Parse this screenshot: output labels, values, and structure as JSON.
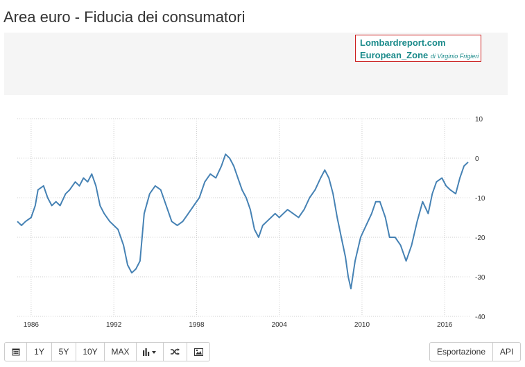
{
  "page": {
    "title": "Area euro - Fiducia dei consumatori"
  },
  "watermark": {
    "line1": "Lombardreport.com",
    "line2": "European_Zone",
    "byline": "di Virginio Frigieri"
  },
  "toolbar": {
    "buttons": [
      {
        "icon": "calendar-icon"
      },
      {
        "label": "1Y"
      },
      {
        "label": "5Y"
      },
      {
        "label": "10Y"
      },
      {
        "label": "MAX"
      },
      {
        "icon": "bar-chart-dropdown-icon"
      },
      {
        "icon": "shuffle-icon"
      },
      {
        "icon": "image-icon"
      }
    ],
    "right": [
      {
        "label": "Esportazione"
      },
      {
        "label": "API"
      }
    ]
  },
  "chart_data": {
    "type": "line",
    "xlabel": "",
    "ylabel": "",
    "xlim": [
      1985.0,
      2017.8
    ],
    "ylim": [
      -40,
      10
    ],
    "x_ticks": [
      "1986",
      "1992",
      "1998",
      "2004",
      "2010",
      "2016"
    ],
    "y_ticks": [
      "10",
      "0",
      "-10",
      "-20",
      "-30",
      "-40"
    ],
    "y_axis_position": "right",
    "grid": "dotted vertical at year ticks, dotted horizontal at value ticks",
    "line_color": "#4682b4",
    "series": [
      {
        "x": [
          1985.0,
          1985.3,
          1985.6,
          1986.0,
          1986.3,
          1986.5,
          1986.9,
          1987.2,
          1987.5,
          1987.8,
          1988.1,
          1988.5,
          1988.8,
          1989.2,
          1989.5,
          1989.8,
          1990.1,
          1990.4,
          1990.7,
          1991.0,
          1991.3,
          1991.7,
          1992.0,
          1992.3,
          1992.7,
          1993.0,
          1993.3,
          1993.6,
          1993.9,
          1994.2,
          1994.6,
          1995.0,
          1995.4,
          1995.8,
          1996.2,
          1996.6,
          1997.0,
          1997.4,
          1997.8,
          1998.2,
          1998.6,
          1999.0,
          1999.4,
          1999.8,
          2000.1,
          2000.4,
          2000.7,
          2001.0,
          2001.3,
          2001.6,
          2001.9,
          2002.2,
          2002.5,
          2002.8,
          2003.1,
          2003.4,
          2003.7,
          2004.0,
          2004.3,
          2004.6,
          2005.0,
          2005.4,
          2005.8,
          2006.2,
          2006.6,
          2007.0,
          2007.3,
          2007.6,
          2007.9,
          2008.2,
          2008.5,
          2008.8,
          2009.0,
          2009.2,
          2009.5,
          2009.9,
          2010.3,
          2010.7,
          2011.0,
          2011.3,
          2011.7,
          2012.0,
          2012.4,
          2012.8,
          2013.2,
          2013.6,
          2014.0,
          2014.4,
          2014.8,
          2015.1,
          2015.4,
          2015.8,
          2016.1,
          2016.4,
          2016.8,
          2017.1,
          2017.4,
          2017.7
        ],
        "y": [
          -16,
          -17,
          -16,
          -15,
          -12,
          -8,
          -7,
          -10,
          -12,
          -11,
          -12,
          -9,
          -8,
          -6,
          -7,
          -5,
          -6,
          -4,
          -7,
          -12,
          -14,
          -16,
          -17,
          -18,
          -22,
          -27,
          -29,
          -28,
          -26,
          -14,
          -9,
          -7,
          -8,
          -12,
          -16,
          -17,
          -16,
          -14,
          -12,
          -10,
          -6,
          -4,
          -5,
          -2,
          1,
          0,
          -2,
          -5,
          -8,
          -10,
          -13,
          -18,
          -20,
          -17,
          -16,
          -15,
          -14,
          -15,
          -14,
          -13,
          -14,
          -15,
          -13,
          -10,
          -8,
          -5,
          -3,
          -5,
          -9,
          -15,
          -20,
          -25,
          -30,
          -33,
          -26,
          -20,
          -17,
          -14,
          -11,
          -11,
          -15,
          -20,
          -20,
          -22,
          -26,
          -22,
          -16,
          -11,
          -14,
          -9,
          -6,
          -5,
          -7,
          -8,
          -9,
          -5,
          -2,
          -1
        ]
      }
    ]
  }
}
